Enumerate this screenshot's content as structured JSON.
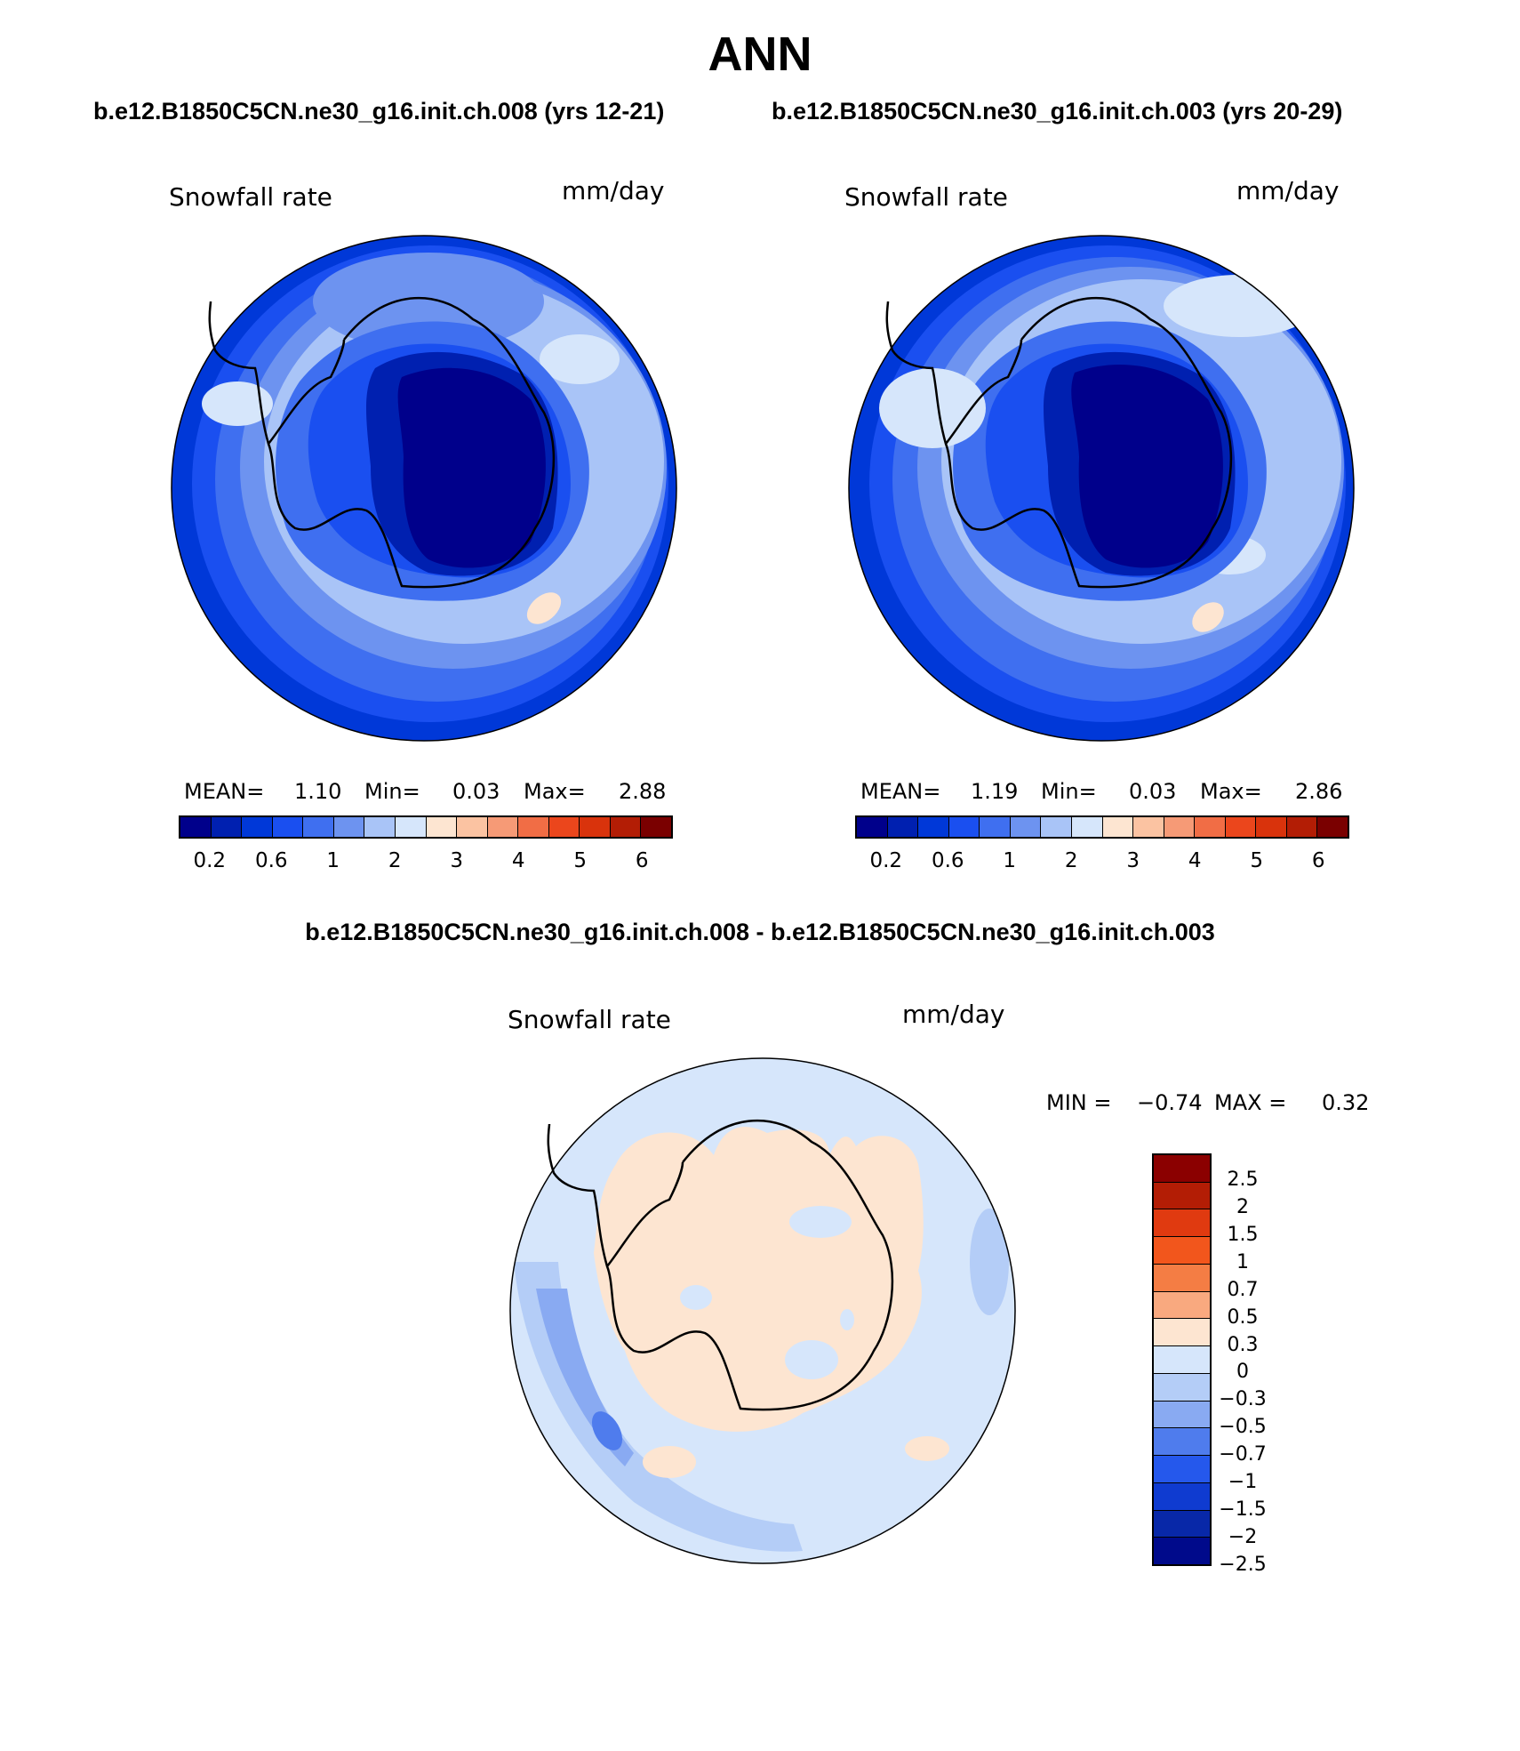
{
  "title": "ANN",
  "subtitle_left": "b.e12.B1850C5CN.ne30_g16.init.ch.008 (yrs 12-21)",
  "subtitle_right": "b.e12.B1850C5CN.ne30_g16.init.ch.003 (yrs 20-29)",
  "diff_title": "b.e12.B1850C5CN.ne30_g16.init.ch.008 - b.e12.B1850C5CN.ne30_g16.init.ch.003",
  "panels": [
    {
      "variable": "Snowfall rate",
      "units": "mm/day",
      "mean_label": "MEAN=",
      "mean": "1.10",
      "min_label": "Min=",
      "min": "0.03",
      "max_label": "Max=",
      "max": "2.88"
    },
    {
      "variable": "Snowfall rate",
      "units": "mm/day",
      "mean_label": "MEAN=",
      "mean": "1.19",
      "min_label": "Min=",
      "min": "0.03",
      "max_label": "Max=",
      "max": "2.86"
    }
  ],
  "diff_panel": {
    "variable": "Snowfall rate",
    "units": "mm/day",
    "min_label": "MIN =",
    "min": "−0.74",
    "max_label": "MAX =",
    "max": "0.32"
  },
  "colorbar_abs": {
    "colors": [
      "#00008b",
      "#0020b0",
      "#0038d8",
      "#1a4ff0",
      "#3f6ff0",
      "#6d93f0",
      "#a9c4f7",
      "#d6e6fb",
      "#fde5d1",
      "#fbc3a2",
      "#f69a76",
      "#f16d45",
      "#eb461c",
      "#d9330c",
      "#b31d05",
      "#7a0000"
    ],
    "ticks": [
      "0.2",
      "0.6",
      "1",
      "2",
      "3",
      "4",
      "5",
      "6"
    ]
  },
  "colorbar_diff": {
    "colors": [
      "#8b0000",
      "#b31d05",
      "#e03a10",
      "#f2561c",
      "#f47d44",
      "#f9a97f",
      "#fde5d1",
      "#d6e6fb",
      "#b4cdf7",
      "#89aaf2",
      "#4f7ced",
      "#2558ec",
      "#0f3bd0",
      "#0828a8",
      "#000a8b"
    ],
    "ticks": [
      "2.5",
      "2",
      "1.5",
      "1",
      "0.7",
      "0.5",
      "0.3",
      "0",
      "−0.3",
      "−0.5",
      "−0.7",
      "−1",
      "−1.5",
      "−2",
      "−2.5"
    ]
  },
  "map_colors": {
    "abs": [
      "#3f6ff0",
      "#6d93f0",
      "#a9c4f7",
      "#d6e6fb",
      "#1a4ff0",
      "#0038d8",
      "#0020b0",
      "#00008b",
      "#fde5d1",
      "#0020b0"
    ],
    "diff": [
      "#d6e6fb",
      "#b4cdf7",
      "#89aaf2",
      "#4f7ced",
      "#fde5d1"
    ]
  }
}
